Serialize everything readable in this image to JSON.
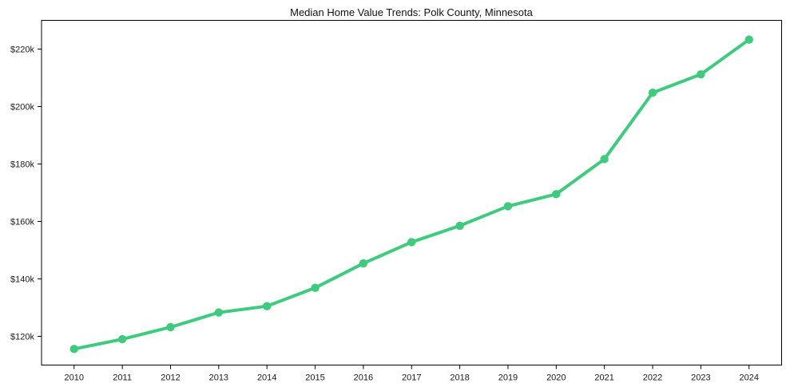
{
  "figure": {
    "background_color": "#ffffff",
    "frame_color": "#000000",
    "text_color": "#1a1a1a"
  },
  "chart_data": {
    "type": "line",
    "title": "Median Home Value Trends: Polk County, Minnesota",
    "x": [
      2010,
      2011,
      2012,
      2013,
      2014,
      2015,
      2016,
      2017,
      2018,
      2019,
      2020,
      2021,
      2022,
      2023,
      2024
    ],
    "series": [
      {
        "name": "median-home-value",
        "color": "#3ecb7e",
        "marker": "circle",
        "values": [
          115600,
          119000,
          123200,
          128300,
          130500,
          136900,
          145400,
          152800,
          158500,
          165300,
          169500,
          181700,
          204800,
          211200,
          223300
        ]
      }
    ],
    "xlabel": "",
    "ylabel": "",
    "ylim": [
      110000,
      230000
    ],
    "yticks": {
      "values": [
        120000,
        140000,
        160000,
        180000,
        200000,
        220000
      ],
      "labels": [
        "$120k",
        "$140k",
        "$160k",
        "$180k",
        "$200k",
        "$220k"
      ]
    },
    "grid": false,
    "legend": false
  }
}
